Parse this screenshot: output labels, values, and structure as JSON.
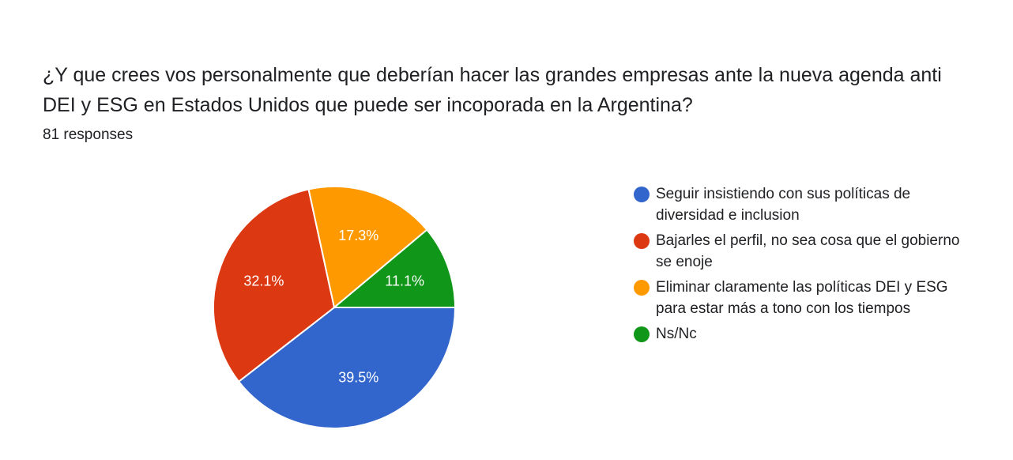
{
  "question": {
    "title": "¿Y que crees vos personalmente que deberían hacer las grandes empresas ante la nueva agenda anti DEI y ESG en Estados Unidos que puede ser incoporada en la Argentina?",
    "responses": "81 responses"
  },
  "chart_data": {
    "type": "pie",
    "title": "¿Y que crees vos personalmente que deberían hacer las grandes empresas ante la nueva agenda anti DEI y ESG en Estados Unidos que puede ser incoporada en la Argentina?",
    "total_responses": 81,
    "legend_position": "right",
    "series": [
      {
        "name": "Seguir insistiendo con sus políticas de diversidad e inclusion",
        "value": 39.5,
        "label": "39.5%",
        "color": "#3366cc"
      },
      {
        "name": "Bajarles el perfil, no sea cosa que el gobierno se enoje",
        "value": 32.1,
        "label": "32.1%",
        "color": "#dc3912"
      },
      {
        "name": "Eliminar claramente las políticas DEI y ESG para estar más a tono con los tiempos",
        "value": 17.3,
        "label": "17.3%",
        "color": "#ff9900"
      },
      {
        "name": "Ns/Nc",
        "value": 11.1,
        "label": "11.1%",
        "color": "#109618"
      }
    ]
  }
}
